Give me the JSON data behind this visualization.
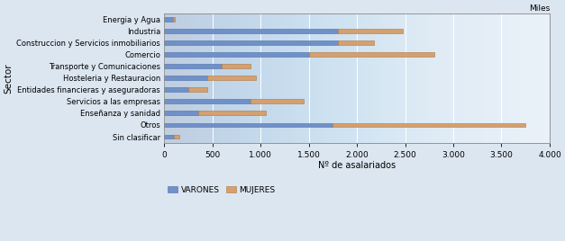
{
  "categories": [
    "Sin clasificar",
    "Otros",
    "Enseñanza y sanidad",
    "Servicios a las empresas",
    "Entidades financieras y aseguradoras",
    "Hosteleria y Restauracion",
    "Transporte y Comunicaciones",
    "Comercio",
    "Construccion y Servicios inmobiliarios",
    "Industria",
    "Energia y Agua"
  ],
  "varones": [
    100,
    1750,
    350,
    900,
    250,
    450,
    600,
    1500,
    1800,
    1800,
    90
  ],
  "mujeres": [
    60,
    2000,
    700,
    550,
    200,
    500,
    300,
    1300,
    380,
    680,
    20
  ],
  "color_varones": "#7090c8",
  "color_mujeres": "#d4a070",
  "xlabel": "Nº de asalariados",
  "ylabel": "Sector",
  "xlim": [
    0,
    4000
  ],
  "xticks": [
    0,
    500,
    1000,
    1500,
    2000,
    2500,
    3000,
    3500,
    4000
  ],
  "xtick_labels": [
    "0",
    "500",
    "1.000",
    "1.500",
    "2.000",
    "2.500",
    "3.000",
    "3.500",
    "4.000"
  ],
  "miles_label": "Miles",
  "legend_varones": "VARONES",
  "legend_mujeres": "MUJERES",
  "fig_bg": "#dce6f1",
  "ax_bg": "#e8f0f8"
}
